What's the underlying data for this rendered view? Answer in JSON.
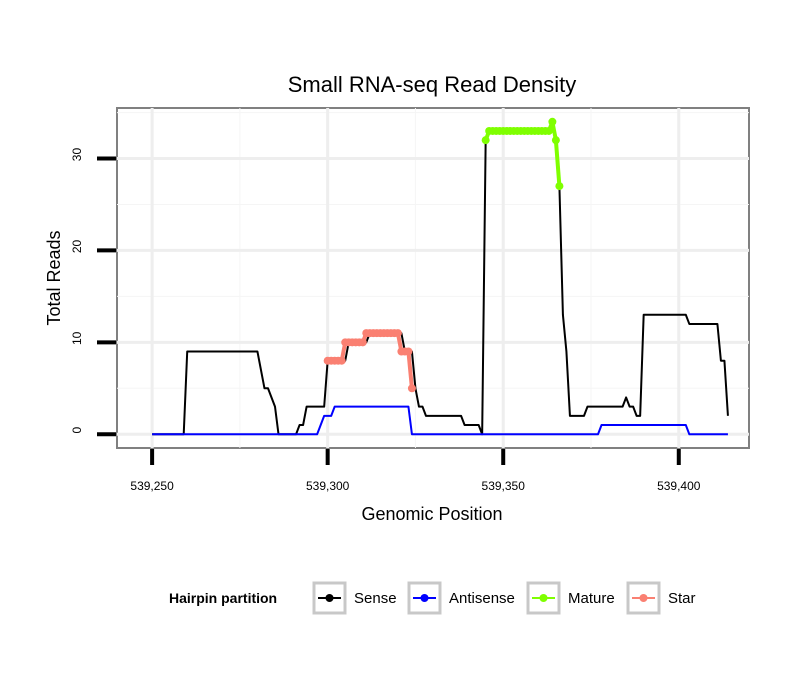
{
  "chart_data": {
    "type": "line",
    "title": "Small RNA-seq Read Density",
    "xlabel": "Genomic Position",
    "ylabel": "Total Reads",
    "xlim": [
      539240,
      539420
    ],
    "ylim": [
      -1.5,
      35.5
    ],
    "x_ticks": [
      539250,
      539300,
      539350,
      539400
    ],
    "x_tick_labels": [
      "539,250",
      "539,300",
      "539,350",
      "539,400"
    ],
    "y_ticks": [
      0,
      10,
      20,
      30
    ],
    "y_tick_labels": [
      "0",
      "10",
      "20",
      "30"
    ],
    "grid": true,
    "legend": {
      "title": "Hairpin partition",
      "position": "bottom",
      "entries": [
        {
          "label": "Sense",
          "color": "#000000"
        },
        {
          "label": "Antisense",
          "color": "#0000ff"
        },
        {
          "label": "Mature",
          "color": "#7fff00"
        },
        {
          "label": "Star",
          "color": "#fa8072"
        }
      ]
    },
    "series": [
      {
        "name": "Sense",
        "color": "#000000",
        "points": [
          [
            539250,
            0
          ],
          [
            539259,
            0
          ],
          [
            539260,
            9
          ],
          [
            539280,
            9
          ],
          [
            539282,
            5
          ],
          [
            539283,
            5
          ],
          [
            539285,
            3
          ],
          [
            539286,
            0
          ],
          [
            539291,
            0
          ],
          [
            539292,
            1
          ],
          [
            539293,
            1
          ],
          [
            539294,
            3
          ],
          [
            539299,
            3
          ],
          [
            539300,
            8
          ],
          [
            539305,
            8
          ],
          [
            539306,
            10
          ],
          [
            539311,
            10
          ],
          [
            539312,
            11
          ],
          [
            539321,
            11
          ],
          [
            539322,
            9
          ],
          [
            539324,
            9
          ],
          [
            539325,
            5
          ],
          [
            539326,
            3
          ],
          [
            539327,
            3
          ],
          [
            539328,
            2
          ],
          [
            539338,
            2
          ],
          [
            539339,
            1
          ],
          [
            539343,
            1
          ],
          [
            539344,
            0
          ],
          [
            539345,
            32
          ],
          [
            539346,
            33
          ],
          [
            539363,
            33
          ],
          [
            539364,
            34
          ],
          [
            539365,
            32
          ],
          [
            539366,
            27
          ],
          [
            539367,
            13
          ],
          [
            539368,
            9
          ],
          [
            539369,
            2
          ],
          [
            539373,
            2
          ],
          [
            539374,
            3
          ],
          [
            539384,
            3
          ],
          [
            539385,
            4
          ],
          [
            539386,
            3
          ],
          [
            539387,
            3
          ],
          [
            539388,
            2
          ],
          [
            539389,
            2
          ],
          [
            539390,
            13
          ],
          [
            539402,
            13
          ],
          [
            539403,
            12
          ],
          [
            539411,
            12
          ],
          [
            539412,
            8
          ],
          [
            539413,
            8
          ],
          [
            539414,
            2
          ]
        ]
      },
      {
        "name": "Antisense",
        "color": "#0000ff",
        "points": [
          [
            539250,
            0
          ],
          [
            539297,
            0
          ],
          [
            539299,
            2
          ],
          [
            539301,
            2
          ],
          [
            539302,
            3
          ],
          [
            539323,
            3
          ],
          [
            539324,
            0
          ],
          [
            539377,
            0
          ],
          [
            539378,
            1
          ],
          [
            539402,
            1
          ],
          [
            539403,
            0
          ],
          [
            539414,
            0
          ]
        ]
      },
      {
        "name": "Mature",
        "color": "#7fff00",
        "points": [
          [
            539345,
            32
          ],
          [
            539346,
            33
          ],
          [
            539347,
            33
          ],
          [
            539348,
            33
          ],
          [
            539349,
            33
          ],
          [
            539350,
            33
          ],
          [
            539351,
            33
          ],
          [
            539352,
            33
          ],
          [
            539353,
            33
          ],
          [
            539354,
            33
          ],
          [
            539355,
            33
          ],
          [
            539356,
            33
          ],
          [
            539357,
            33
          ],
          [
            539358,
            33
          ],
          [
            539359,
            33
          ],
          [
            539360,
            33
          ],
          [
            539361,
            33
          ],
          [
            539362,
            33
          ],
          [
            539363,
            33
          ],
          [
            539364,
            34
          ],
          [
            539365,
            32
          ],
          [
            539366,
            27
          ]
        ]
      },
      {
        "name": "Star",
        "color": "#fa8072",
        "points": [
          [
            539300,
            8
          ],
          [
            539301,
            8
          ],
          [
            539302,
            8
          ],
          [
            539303,
            8
          ],
          [
            539304,
            8
          ],
          [
            539305,
            10
          ],
          [
            539306,
            10
          ],
          [
            539307,
            10
          ],
          [
            539308,
            10
          ],
          [
            539309,
            10
          ],
          [
            539310,
            10
          ],
          [
            539311,
            11
          ],
          [
            539312,
            11
          ],
          [
            539313,
            11
          ],
          [
            539314,
            11
          ],
          [
            539315,
            11
          ],
          [
            539316,
            11
          ],
          [
            539317,
            11
          ],
          [
            539318,
            11
          ],
          [
            539319,
            11
          ],
          [
            539320,
            11
          ],
          [
            539321,
            9
          ],
          [
            539322,
            9
          ],
          [
            539323,
            9
          ],
          [
            539324,
            5
          ]
        ]
      }
    ]
  }
}
